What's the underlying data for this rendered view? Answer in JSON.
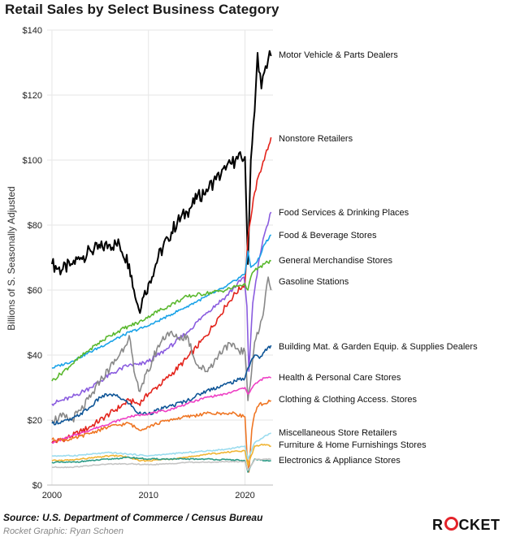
{
  "title": "Retail Sales by Select Business Category",
  "source": "Source: U.S. Department of Commerce / Census Bureau",
  "credit": "Rocket Graphic: Ryan Schoen",
  "brand": {
    "part1": "R",
    "part2": "CKET",
    "accent": "#e4232a"
  },
  "chart_data": {
    "type": "line",
    "title": "Retail Sales by Select Business Category",
    "ylabel": "Billions of S. Seasonally Adjusted",
    "xlabel": "",
    "xlim": [
      1999.5,
      2022.9
    ],
    "ylim": [
      0,
      140
    ],
    "x_ticks": [
      2000,
      2010,
      2020
    ],
    "x_tick_labels": [
      "2000",
      "2010",
      "2020"
    ],
    "y_ticks": [
      0,
      20,
      40,
      60,
      80,
      100,
      120,
      140
    ],
    "y_tick_labels": [
      "$0",
      "$20",
      "$40",
      "$60",
      "$80",
      "$100",
      "$120",
      "$140"
    ],
    "grid": true,
    "legend": "labels at right end of lines",
    "series": [
      {
        "name": "Motor Vehicle & Parts Dealers",
        "color": "#000000",
        "x": [
          2000,
          2001,
          2002,
          2003,
          2004,
          2005,
          2006,
          2007,
          2008,
          2008.5,
          2009,
          2009.5,
          2010,
          2011,
          2012,
          2013,
          2014,
          2015,
          2016,
          2017,
          2018,
          2019,
          2020,
          2020.3,
          2020.6,
          2021,
          2021.3,
          2021.7,
          2022,
          2022.4,
          2022.7
        ],
        "y": [
          68,
          66,
          68,
          70,
          72,
          73,
          74,
          74,
          68,
          60,
          54,
          58,
          62,
          70,
          76,
          81,
          84,
          88,
          91,
          94,
          97,
          100,
          101,
          68,
          100,
          115,
          133,
          122,
          127,
          131,
          132
        ]
      },
      {
        "name": "Nonstore Retailers",
        "color": "#e3231b",
        "x": [
          2000,
          2002,
          2004,
          2006,
          2008,
          2009,
          2010,
          2012,
          2014,
          2016,
          2018,
          2019,
          2020,
          2020.3,
          2020.6,
          2021,
          2021.5,
          2022,
          2022.7
        ],
        "y": [
          13,
          15,
          18,
          22,
          26,
          25,
          28,
          33,
          39,
          46,
          55,
          59,
          62,
          76,
          82,
          90,
          96,
          100,
          107
        ]
      },
      {
        "name": "Food Services & Drinking Places",
        "color": "#8a5cdf",
        "x": [
          2000,
          2002,
          2004,
          2006,
          2008,
          2009,
          2010,
          2012,
          2014,
          2016,
          2018,
          2019.9,
          2020.2,
          2020.4,
          2020.8,
          2021,
          2021.5,
          2022,
          2022.7
        ],
        "y": [
          25,
          27,
          30,
          34,
          37,
          37,
          38,
          42,
          47,
          53,
          58,
          64,
          55,
          35,
          56,
          60,
          70,
          77,
          84
        ]
      },
      {
        "name": "Food & Beverage Stores",
        "color": "#1aa3e8",
        "x": [
          2000,
          2002,
          2004,
          2006,
          2008,
          2009,
          2010,
          2012,
          2014,
          2016,
          2018,
          2019,
          2020,
          2020.3,
          2020.6,
          2021,
          2021.5,
          2022,
          2022.7
        ],
        "y": [
          36,
          38,
          41,
          44,
          47,
          48,
          49,
          52,
          55,
          58,
          61,
          63,
          65,
          72,
          67,
          68,
          70,
          74,
          77
        ]
      },
      {
        "name": "General Merchandise Stores",
        "color": "#5ab82e",
        "x": [
          2000,
          2002,
          2004,
          2006,
          2008,
          2009,
          2010,
          2012,
          2014,
          2016,
          2018,
          2019,
          2020,
          2020.3,
          2020.6,
          2021,
          2021.5,
          2022,
          2022.7
        ],
        "y": [
          32,
          37,
          42,
          46,
          49,
          50,
          52,
          55,
          58,
          59,
          60,
          61,
          62,
          60,
          64,
          66,
          67,
          68,
          69
        ]
      },
      {
        "name": "Gasoline Stations",
        "color": "#888888",
        "x": [
          2000,
          2001,
          2002,
          2003,
          2004,
          2005,
          2006,
          2007,
          2008,
          2008.5,
          2009,
          2010,
          2011,
          2012,
          2013,
          2014,
          2015,
          2016,
          2017,
          2018,
          2019,
          2020,
          2020.3,
          2021,
          2021.5,
          2022,
          2022.4,
          2022.7
        ],
        "y": [
          20,
          21,
          20,
          23,
          27,
          32,
          36,
          40,
          46,
          35,
          29,
          35,
          43,
          47,
          45,
          46,
          37,
          35,
          39,
          43,
          42,
          41,
          26,
          44,
          48,
          55,
          64,
          60
        ]
      },
      {
        "name": "Building Mat. & Garden Equip. & Supplies Dealers",
        "color": "#0e5597",
        "x": [
          2000,
          2002,
          2004,
          2005,
          2006,
          2007,
          2008,
          2009,
          2010,
          2012,
          2014,
          2016,
          2018,
          2019,
          2020,
          2020.3,
          2020.6,
          2021,
          2021.5,
          2022,
          2022.7
        ],
        "y": [
          19,
          20,
          24,
          27,
          28,
          27,
          25,
          22,
          22,
          24,
          26,
          29,
          31,
          32,
          33,
          36,
          38,
          40,
          39,
          41,
          43
        ]
      },
      {
        "name": "Health & Personal Care Stores",
        "color": "#ee3fc4",
        "x": [
          2000,
          2002,
          2004,
          2006,
          2008,
          2010,
          2012,
          2014,
          2016,
          2018,
          2019,
          2020,
          2020.3,
          2021,
          2022,
          2022.7
        ],
        "y": [
          13,
          15,
          17,
          19,
          21,
          22,
          23,
          25,
          27,
          28,
          29,
          30,
          28,
          31,
          33,
          33
        ]
      },
      {
        "name": "Clothing & Clothing Access. Stores",
        "color": "#ef7624",
        "x": [
          2000,
          2002,
          2004,
          2006,
          2008,
          2009,
          2010,
          2012,
          2014,
          2016,
          2018,
          2019,
          2020,
          2020.2,
          2020.4,
          2020.7,
          2021,
          2021.5,
          2022,
          2022.7
        ],
        "y": [
          14,
          14,
          16,
          18,
          19,
          17,
          18,
          20,
          21,
          22,
          22,
          22,
          21,
          10,
          4,
          17,
          22,
          25,
          25,
          26
        ]
      },
      {
        "name": "Miscellaneous Store Retailers",
        "color": "#9bdcef",
        "x": [
          2000,
          2002,
          2004,
          2006,
          2008,
          2010,
          2012,
          2014,
          2016,
          2018,
          2019,
          2020,
          2020.3,
          2021,
          2022,
          2022.7
        ],
        "y": [
          9,
          9,
          9.5,
          10,
          9.5,
          9,
          9.5,
          10,
          10.5,
          11,
          11.5,
          12,
          8,
          13,
          15,
          16
        ]
      },
      {
        "name": "Furniture & Home Furnishings Stores",
        "color": "#f0b433",
        "x": [
          2000,
          2002,
          2004,
          2006,
          2007,
          2008,
          2009,
          2010,
          2012,
          2014,
          2016,
          2018,
          2019,
          2020,
          2020.3,
          2021,
          2022,
          2022.7
        ],
        "y": [
          7.5,
          7.7,
          8.3,
          9,
          9,
          8.5,
          7.5,
          7.5,
          8,
          8.5,
          9.5,
          10,
          10.5,
          10.5,
          6,
          12,
          12.5,
          12
        ]
      },
      {
        "name": "Electronics & Appliance Stores",
        "color": "#2a9a86",
        "x": [
          2000,
          2002,
          2004,
          2006,
          2008,
          2010,
          2012,
          2014,
          2016,
          2018,
          2019,
          2020,
          2020.3,
          2021,
          2022,
          2022.7
        ],
        "y": [
          7,
          7,
          7.5,
          8,
          8.5,
          8,
          8,
          8,
          8,
          7.8,
          7.7,
          7.5,
          4,
          8,
          7.5,
          7.5
        ]
      },
      {
        "name": "",
        "color": "#c4c4c4",
        "x": [
          2000,
          2002,
          2004,
          2006,
          2008,
          2010,
          2012,
          2014,
          2016,
          2018,
          2019,
          2020,
          2020.3,
          2021,
          2022,
          2022.7
        ],
        "y": [
          5.5,
          5.5,
          6,
          6.5,
          6.5,
          6.3,
          6.5,
          7,
          7,
          7.2,
          7.2,
          7.2,
          4.5,
          7.8,
          8,
          8
        ]
      }
    ]
  }
}
